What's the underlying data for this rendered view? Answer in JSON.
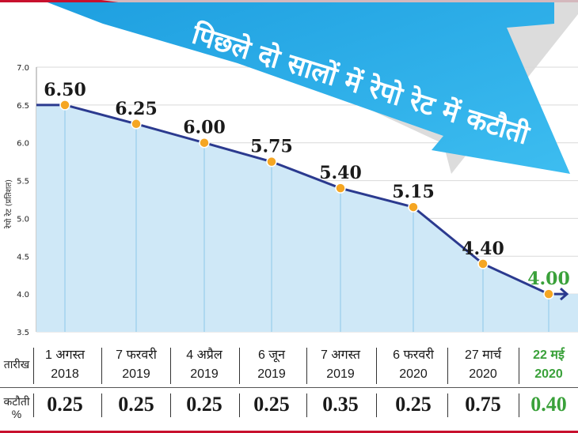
{
  "banner": {
    "text": "पिछले दो सालों में रेपो रेट में कटौती"
  },
  "chart_data": {
    "type": "line",
    "ylabel": "रेपो रेट (प्रतिशत)",
    "ylim": [
      3.5,
      7.0
    ],
    "yticks": [
      "7.0",
      "6.5",
      "6.0",
      "5.5",
      "5.0",
      "4.5",
      "4.0",
      "3.5"
    ],
    "grid": true,
    "categories": [
      "1 अगस्त 2018",
      "7 फरवरी 2019",
      "4 अप्रैल 2019",
      "6 जून 2019",
      "7 अगस्त 2019",
      "6 फरवरी 2020",
      "27 मार्च 2020",
      "22 मई 2020"
    ],
    "values": [
      6.5,
      6.25,
      6.0,
      5.75,
      5.4,
      5.15,
      4.4,
      4.0
    ],
    "data_labels": [
      "6.50",
      "6.25",
      "6.00",
      "5.75",
      "5.40",
      "5.15",
      "4.40",
      "4.00"
    ]
  },
  "table": {
    "date_header": "तारीख",
    "cut_header_line1": "कटौती",
    "cut_header_line2": "%",
    "dates": [
      {
        "line1": "1 अगस्त",
        "line2": "2018"
      },
      {
        "line1": "7 फरवरी",
        "line2": "2019"
      },
      {
        "line1": "4 अप्रैल",
        "line2": "2019"
      },
      {
        "line1": "6 जून",
        "line2": "2019"
      },
      {
        "line1": "7 अगस्त",
        "line2": "2019"
      },
      {
        "line1": "6 फरवरी",
        "line2": "2020"
      },
      {
        "line1": "27 मार्च",
        "line2": "2020"
      },
      {
        "line1": "22 मई",
        "line2": "2020"
      }
    ],
    "cuts": [
      "0.25",
      "0.25",
      "0.25",
      "0.25",
      "0.35",
      "0.25",
      "0.75",
      "0.40"
    ]
  },
  "colors": {
    "area_fill": "#cfe8f7",
    "line": "#2b3a8f",
    "marker": "#f5a623",
    "arrow": "#29abe2",
    "highlight": "#3aa13a",
    "rule": "#c8102e"
  }
}
